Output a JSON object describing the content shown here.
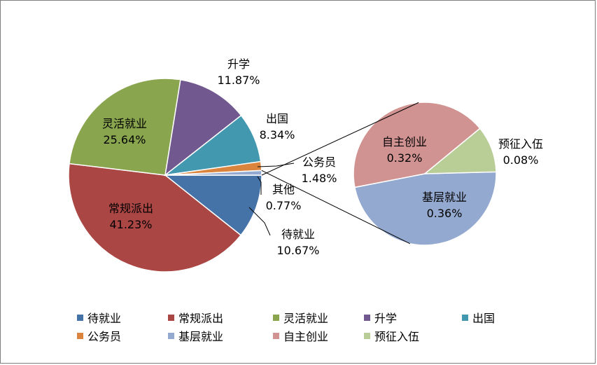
{
  "chart_data": {
    "type": "pie",
    "main_slices": [
      {
        "name": "待就业",
        "value": 10.67,
        "label": "10.67%",
        "color": "#4572a7"
      },
      {
        "name": "常规派出",
        "value": 41.23,
        "label": "41.23%",
        "color": "#aa4643"
      },
      {
        "name": "灵活就业",
        "value": 25.64,
        "label": "25.64%",
        "color": "#89a54e"
      },
      {
        "name": "升学",
        "value": 11.87,
        "label": "11.87%",
        "color": "#71588f"
      },
      {
        "name": "出国",
        "value": 8.34,
        "label": "8.34%",
        "color": "#4198af"
      },
      {
        "name": "公务员",
        "value": 1.48,
        "label": "1.48%",
        "color": "#db843d"
      },
      {
        "name": "其他",
        "value": 0.77,
        "label": "0.77%",
        "color": "#93a9cf"
      }
    ],
    "sub_slices": [
      {
        "name": "基层就业",
        "value": 0.36,
        "label": "0.36%",
        "color": "#93a9cf"
      },
      {
        "name": "自主创业",
        "value": 0.32,
        "label": "0.32%",
        "color": "#d19392"
      },
      {
        "name": "预征入伍",
        "value": 0.08,
        "label": "0.08%",
        "color": "#b9cd96"
      }
    ],
    "legend": [
      {
        "name": "待就业",
        "color": "#4572a7"
      },
      {
        "name": "常规派出",
        "color": "#aa4643"
      },
      {
        "name": "灵活就业",
        "color": "#89a54e"
      },
      {
        "name": "升学",
        "color": "#71588f"
      },
      {
        "name": "出国",
        "color": "#4198af"
      },
      {
        "name": "公务员",
        "color": "#db843d"
      },
      {
        "name": "基层就业",
        "color": "#93a9cf"
      },
      {
        "name": "自主创业",
        "color": "#d19392"
      },
      {
        "name": "预征入伍",
        "color": "#b9cd96"
      }
    ]
  }
}
